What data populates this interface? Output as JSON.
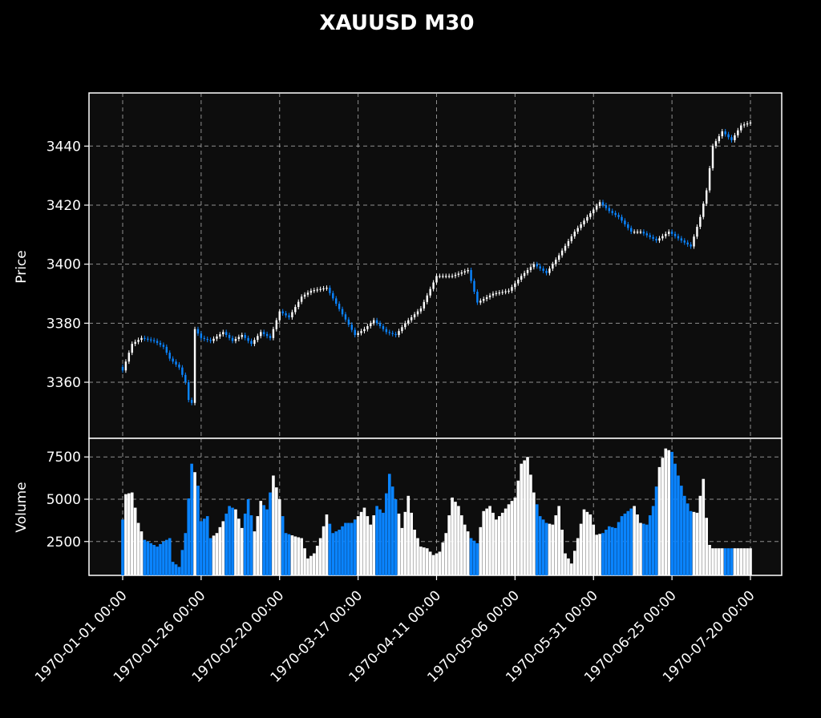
{
  "chart_data": {
    "type": "candlestick",
    "title": "XAUUSD M30",
    "colors": {
      "background": "#000000",
      "panel": "#0d0d0d",
      "up": "#ffffff",
      "down": "#0a84ff",
      "grid": "#bbbbbb"
    },
    "grid": true,
    "price_panel": {
      "ylabel": "Price",
      "ylim": [
        3341,
        3458
      ],
      "yticks": [
        3360,
        3380,
        3400,
        3420,
        3440
      ]
    },
    "volume_panel": {
      "ylabel": "Volume",
      "ylim": [
        500,
        8600
      ],
      "yticks": [
        2500,
        5000,
        7500
      ]
    },
    "x_domain": [
      0,
      200
    ],
    "xticks": [
      {
        "x": 0,
        "label": "1970-01-01 00:00"
      },
      {
        "x": 25,
        "label": "1970-01-26 00:00"
      },
      {
        "x": 50,
        "label": "1970-02-20 00:00"
      },
      {
        "x": 75,
        "label": "1970-03-17 00:00"
      },
      {
        "x": 100,
        "label": "1970-04-11 00:00"
      },
      {
        "x": 125,
        "label": "1970-05-06 00:00"
      },
      {
        "x": 150,
        "label": "1970-05-31 00:00"
      },
      {
        "x": 175,
        "label": "1970-06-25 00:00"
      },
      {
        "x": 200,
        "label": "1970-07-20 00:00"
      }
    ],
    "close_anchors": [
      [
        0,
        3364
      ],
      [
        3,
        3373
      ],
      [
        6,
        3375
      ],
      [
        10,
        3374
      ],
      [
        13,
        3372
      ],
      [
        15,
        3368
      ],
      [
        18,
        3365
      ],
      [
        20,
        3360
      ],
      [
        21,
        3354
      ],
      [
        22,
        3353
      ],
      [
        23,
        3378
      ],
      [
        25,
        3375
      ],
      [
        28,
        3374
      ],
      [
        32,
        3377
      ],
      [
        35,
        3374
      ],
      [
        38,
        3376
      ],
      [
        41,
        3373
      ],
      [
        44,
        3377
      ],
      [
        47,
        3375
      ],
      [
        50,
        3384
      ],
      [
        53,
        3382
      ],
      [
        57,
        3389
      ],
      [
        60,
        3391
      ],
      [
        65,
        3392
      ],
      [
        70,
        3383
      ],
      [
        74,
        3376
      ],
      [
        77,
        3378
      ],
      [
        80,
        3381
      ],
      [
        84,
        3377
      ],
      [
        87,
        3376
      ],
      [
        90,
        3380
      ],
      [
        95,
        3385
      ],
      [
        100,
        3396
      ],
      [
        105,
        3396
      ],
      [
        110,
        3398
      ],
      [
        113,
        3387
      ],
      [
        118,
        3390
      ],
      [
        123,
        3391
      ],
      [
        127,
        3396
      ],
      [
        131,
        3400
      ],
      [
        135,
        3397
      ],
      [
        139,
        3403
      ],
      [
        144,
        3411
      ],
      [
        148,
        3416
      ],
      [
        152,
        3421
      ],
      [
        155,
        3418
      ],
      [
        158,
        3416
      ],
      [
        162,
        3411
      ],
      [
        165,
        3411
      ],
      [
        170,
        3408
      ],
      [
        174,
        3411
      ],
      [
        178,
        3408
      ],
      [
        181,
        3406
      ],
      [
        184,
        3416
      ],
      [
        186,
        3425
      ],
      [
        188,
        3440
      ],
      [
        191,
        3445
      ],
      [
        194,
        3442
      ],
      [
        197,
        3447
      ],
      [
        200,
        3448
      ]
    ],
    "volume_anchors": [
      [
        0,
        3800
      ],
      [
        1,
        5300
      ],
      [
        3,
        5400
      ],
      [
        5,
        3600
      ],
      [
        7,
        2600
      ],
      [
        9,
        2400
      ],
      [
        11,
        2200
      ],
      [
        13,
        2500
      ],
      [
        15,
        2700
      ],
      [
        16,
        1300
      ],
      [
        18,
        1000
      ],
      [
        20,
        3000
      ],
      [
        22,
        7100
      ],
      [
        23,
        6600
      ],
      [
        24,
        5800
      ],
      [
        25,
        3700
      ],
      [
        27,
        4000
      ],
      [
        28,
        2700
      ],
      [
        30,
        3000
      ],
      [
        32,
        3700
      ],
      [
        34,
        4600
      ],
      [
        36,
        4400
      ],
      [
        38,
        3300
      ],
      [
        40,
        5000
      ],
      [
        42,
        3100
      ],
      [
        44,
        4900
      ],
      [
        46,
        4400
      ],
      [
        48,
        6400
      ],
      [
        50,
        5000
      ],
      [
        52,
        3000
      ],
      [
        55,
        2800
      ],
      [
        57,
        2700
      ],
      [
        59,
        1500
      ],
      [
        61,
        1800
      ],
      [
        63,
        2700
      ],
      [
        65,
        4100
      ],
      [
        67,
        3000
      ],
      [
        69,
        3200
      ],
      [
        71,
        3600
      ],
      [
        73,
        3600
      ],
      [
        75,
        4000
      ],
      [
        77,
        4500
      ],
      [
        79,
        3500
      ],
      [
        81,
        4600
      ],
      [
        83,
        4200
      ],
      [
        85,
        6500
      ],
      [
        87,
        5000
      ],
      [
        89,
        3300
      ],
      [
        91,
        5200
      ],
      [
        93,
        3200
      ],
      [
        95,
        2200
      ],
      [
        97,
        2100
      ],
      [
        99,
        1700
      ],
      [
        101,
        1900
      ],
      [
        103,
        3000
      ],
      [
        105,
        5100
      ],
      [
        107,
        4600
      ],
      [
        109,
        3500
      ],
      [
        111,
        2700
      ],
      [
        113,
        2400
      ],
      [
        115,
        4300
      ],
      [
        117,
        4600
      ],
      [
        119,
        3800
      ],
      [
        121,
        4200
      ],
      [
        123,
        4700
      ],
      [
        125,
        5100
      ],
      [
        127,
        7100
      ],
      [
        129,
        7500
      ],
      [
        131,
        5400
      ],
      [
        133,
        4000
      ],
      [
        135,
        3600
      ],
      [
        137,
        3500
      ],
      [
        139,
        4600
      ],
      [
        141,
        1800
      ],
      [
        143,
        1200
      ],
      [
        145,
        2700
      ],
      [
        147,
        4400
      ],
      [
        149,
        4100
      ],
      [
        151,
        2900
      ],
      [
        153,
        3000
      ],
      [
        155,
        3400
      ],
      [
        157,
        3300
      ],
      [
        159,
        4000
      ],
      [
        161,
        4300
      ],
      [
        163,
        4600
      ],
      [
        165,
        3600
      ],
      [
        167,
        3500
      ],
      [
        169,
        4600
      ],
      [
        171,
        6900
      ],
      [
        173,
        8000
      ],
      [
        175,
        7800
      ],
      [
        177,
        6400
      ],
      [
        179,
        5200
      ],
      [
        181,
        4300
      ],
      [
        183,
        4200
      ],
      [
        185,
        6200
      ],
      [
        186,
        3900
      ],
      [
        187,
        2300
      ],
      [
        188,
        2100
      ],
      [
        200,
        2100
      ]
    ]
  }
}
